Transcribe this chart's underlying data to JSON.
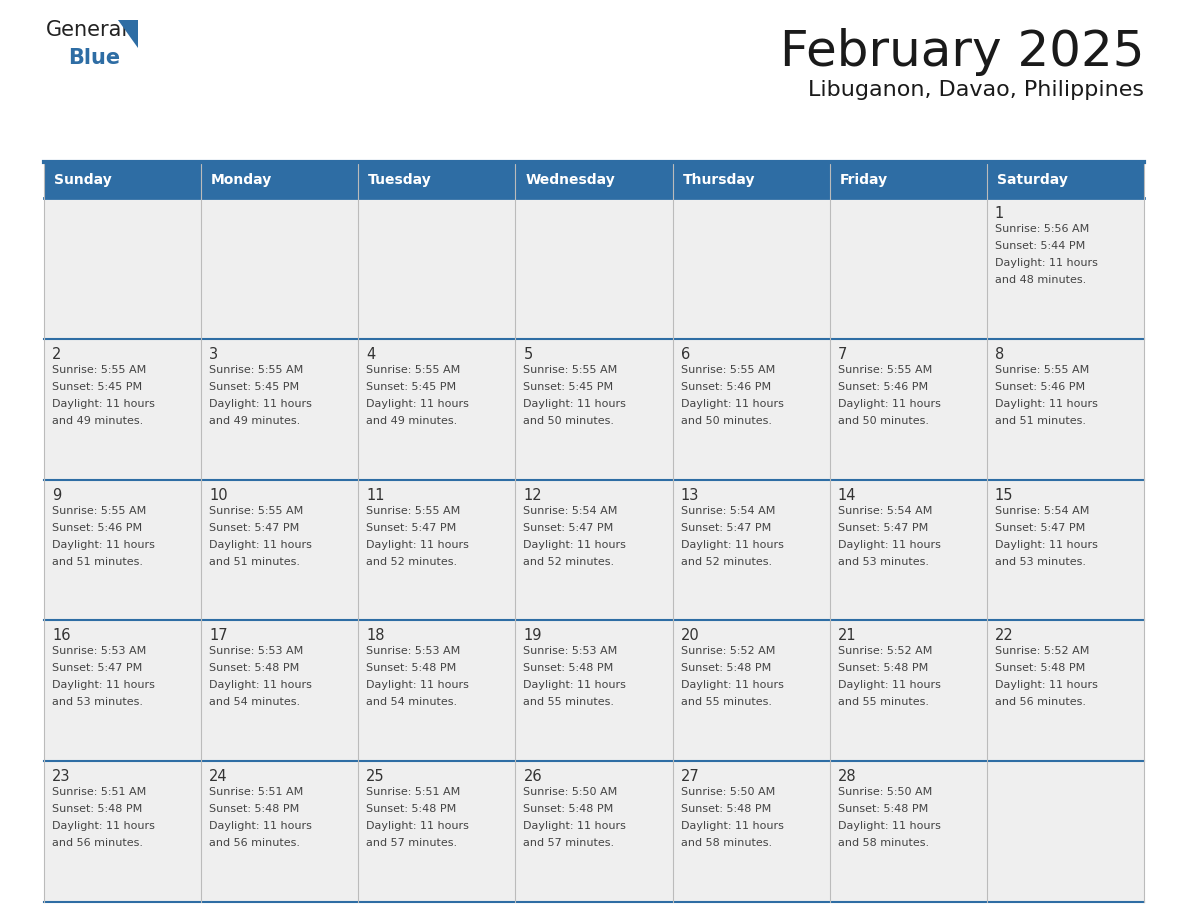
{
  "title": "February 2025",
  "subtitle": "Libuganon, Davao, Philippines",
  "header_bg": "#2E6DA4",
  "header_text": "#FFFFFF",
  "cell_bg": "#EFEFEF",
  "title_color": "#1a1a1a",
  "subtitle_color": "#1a1a1a",
  "day_headers": [
    "Sunday",
    "Monday",
    "Tuesday",
    "Wednesday",
    "Thursday",
    "Friday",
    "Saturday"
  ],
  "row_line_color": "#2E6DA4",
  "col_line_color": "#BBBBBB",
  "border_color": "#BBBBBB",
  "calendar_data": [
    [
      null,
      null,
      null,
      null,
      null,
      null,
      {
        "day": "1",
        "sunrise": "5:56 AM",
        "sunset": "5:44 PM",
        "daylight1": "11 hours",
        "daylight2": "and 48 minutes."
      }
    ],
    [
      {
        "day": "2",
        "sunrise": "5:55 AM",
        "sunset": "5:45 PM",
        "daylight1": "11 hours",
        "daylight2": "and 49 minutes."
      },
      {
        "day": "3",
        "sunrise": "5:55 AM",
        "sunset": "5:45 PM",
        "daylight1": "11 hours",
        "daylight2": "and 49 minutes."
      },
      {
        "day": "4",
        "sunrise": "5:55 AM",
        "sunset": "5:45 PM",
        "daylight1": "11 hours",
        "daylight2": "and 49 minutes."
      },
      {
        "day": "5",
        "sunrise": "5:55 AM",
        "sunset": "5:45 PM",
        "daylight1": "11 hours",
        "daylight2": "and 50 minutes."
      },
      {
        "day": "6",
        "sunrise": "5:55 AM",
        "sunset": "5:46 PM",
        "daylight1": "11 hours",
        "daylight2": "and 50 minutes."
      },
      {
        "day": "7",
        "sunrise": "5:55 AM",
        "sunset": "5:46 PM",
        "daylight1": "11 hours",
        "daylight2": "and 50 minutes."
      },
      {
        "day": "8",
        "sunrise": "5:55 AM",
        "sunset": "5:46 PM",
        "daylight1": "11 hours",
        "daylight2": "and 51 minutes."
      }
    ],
    [
      {
        "day": "9",
        "sunrise": "5:55 AM",
        "sunset": "5:46 PM",
        "daylight1": "11 hours",
        "daylight2": "and 51 minutes."
      },
      {
        "day": "10",
        "sunrise": "5:55 AM",
        "sunset": "5:47 PM",
        "daylight1": "11 hours",
        "daylight2": "and 51 minutes."
      },
      {
        "day": "11",
        "sunrise": "5:55 AM",
        "sunset": "5:47 PM",
        "daylight1": "11 hours",
        "daylight2": "and 52 minutes."
      },
      {
        "day": "12",
        "sunrise": "5:54 AM",
        "sunset": "5:47 PM",
        "daylight1": "11 hours",
        "daylight2": "and 52 minutes."
      },
      {
        "day": "13",
        "sunrise": "5:54 AM",
        "sunset": "5:47 PM",
        "daylight1": "11 hours",
        "daylight2": "and 52 minutes."
      },
      {
        "day": "14",
        "sunrise": "5:54 AM",
        "sunset": "5:47 PM",
        "daylight1": "11 hours",
        "daylight2": "and 53 minutes."
      },
      {
        "day": "15",
        "sunrise": "5:54 AM",
        "sunset": "5:47 PM",
        "daylight1": "11 hours",
        "daylight2": "and 53 minutes."
      }
    ],
    [
      {
        "day": "16",
        "sunrise": "5:53 AM",
        "sunset": "5:47 PM",
        "daylight1": "11 hours",
        "daylight2": "and 53 minutes."
      },
      {
        "day": "17",
        "sunrise": "5:53 AM",
        "sunset": "5:48 PM",
        "daylight1": "11 hours",
        "daylight2": "and 54 minutes."
      },
      {
        "day": "18",
        "sunrise": "5:53 AM",
        "sunset": "5:48 PM",
        "daylight1": "11 hours",
        "daylight2": "and 54 minutes."
      },
      {
        "day": "19",
        "sunrise": "5:53 AM",
        "sunset": "5:48 PM",
        "daylight1": "11 hours",
        "daylight2": "and 55 minutes."
      },
      {
        "day": "20",
        "sunrise": "5:52 AM",
        "sunset": "5:48 PM",
        "daylight1": "11 hours",
        "daylight2": "and 55 minutes."
      },
      {
        "day": "21",
        "sunrise": "5:52 AM",
        "sunset": "5:48 PM",
        "daylight1": "11 hours",
        "daylight2": "and 55 minutes."
      },
      {
        "day": "22",
        "sunrise": "5:52 AM",
        "sunset": "5:48 PM",
        "daylight1": "11 hours",
        "daylight2": "and 56 minutes."
      }
    ],
    [
      {
        "day": "23",
        "sunrise": "5:51 AM",
        "sunset": "5:48 PM",
        "daylight1": "11 hours",
        "daylight2": "and 56 minutes."
      },
      {
        "day": "24",
        "sunrise": "5:51 AM",
        "sunset": "5:48 PM",
        "daylight1": "11 hours",
        "daylight2": "and 56 minutes."
      },
      {
        "day": "25",
        "sunrise": "5:51 AM",
        "sunset": "5:48 PM",
        "daylight1": "11 hours",
        "daylight2": "and 57 minutes."
      },
      {
        "day": "26",
        "sunrise": "5:50 AM",
        "sunset": "5:48 PM",
        "daylight1": "11 hours",
        "daylight2": "and 57 minutes."
      },
      {
        "day": "27",
        "sunrise": "5:50 AM",
        "sunset": "5:48 PM",
        "daylight1": "11 hours",
        "daylight2": "and 58 minutes."
      },
      {
        "day": "28",
        "sunrise": "5:50 AM",
        "sunset": "5:48 PM",
        "daylight1": "11 hours",
        "daylight2": "and 58 minutes."
      },
      null
    ]
  ],
  "logo_text_general": "General",
  "logo_text_blue": "Blue",
  "logo_color_general": "#222222",
  "logo_color_blue": "#2E6DA4",
  "logo_triangle_color": "#2E6DA4",
  "fig_width": 11.88,
  "fig_height": 9.18,
  "dpi": 100
}
